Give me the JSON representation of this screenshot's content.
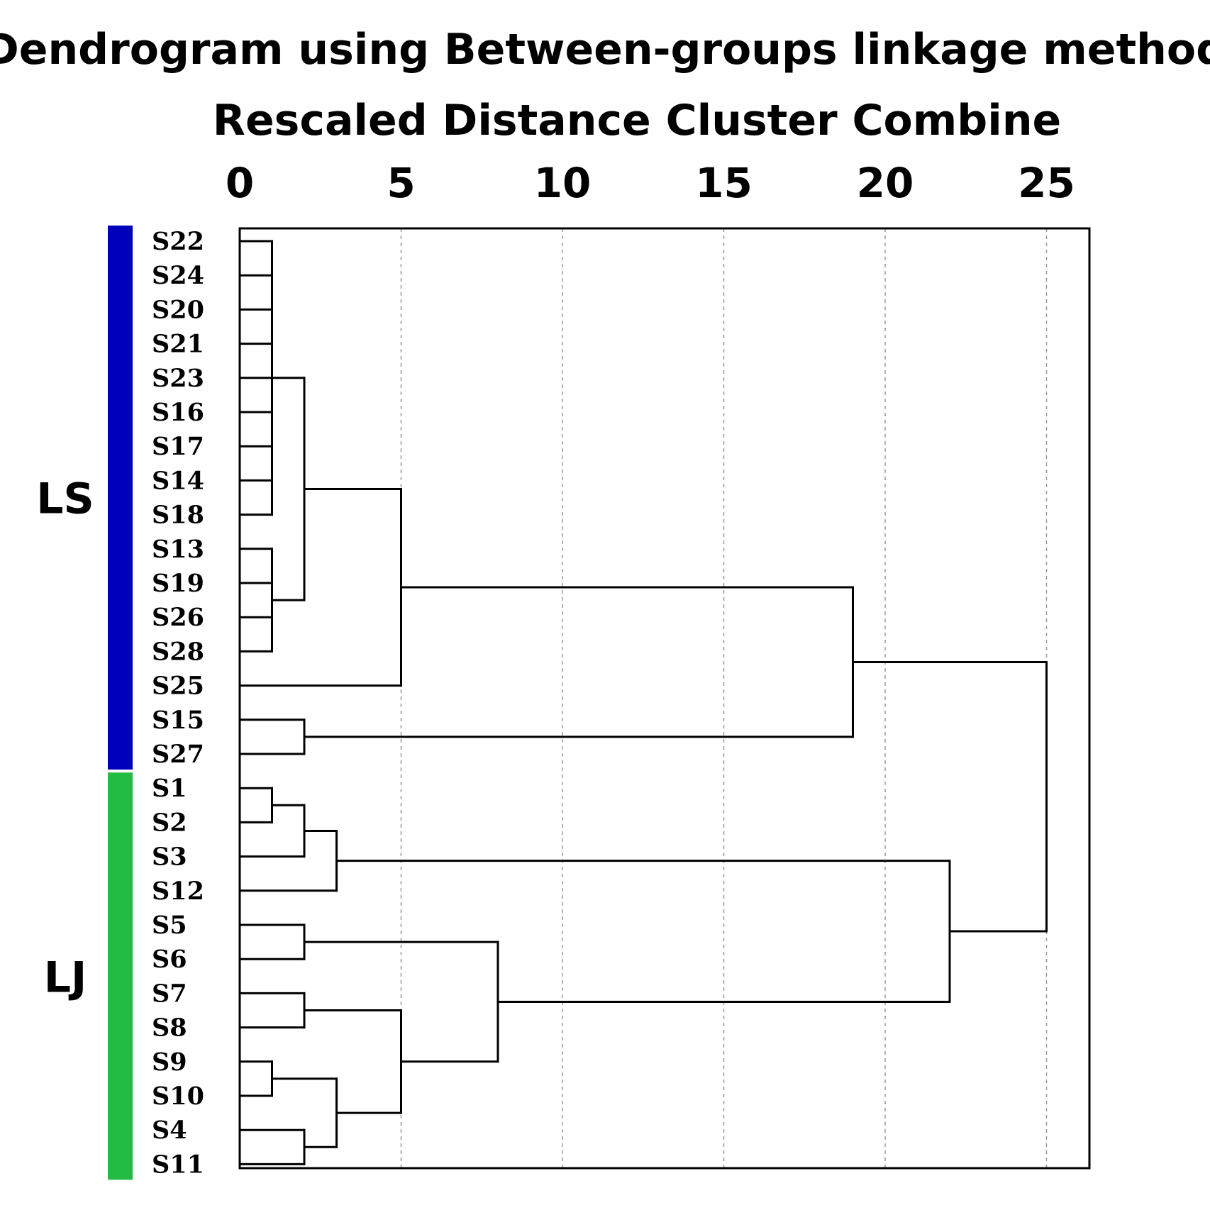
{
  "chart_data": {
    "type": "dendrogram",
    "title": "Dendrogram using Between-groups linkage method",
    "subtitle": "Rescaled Distance Cluster Combine",
    "x_ticks": [
      "0",
      "5",
      "10",
      "15",
      "20",
      "25"
    ],
    "xlim": [
      0,
      26.3
    ],
    "grid": true,
    "leaves": [
      "S22",
      "S24",
      "S20",
      "S21",
      "S23",
      "S16",
      "S17",
      "S14",
      "S18",
      "S13",
      "S19",
      "S26",
      "S28",
      "S25",
      "S15",
      "S27",
      "S1",
      "S2",
      "S3",
      "S12",
      "S5",
      "S6",
      "S7",
      "S8",
      "S9",
      "S10",
      "S4",
      "S11"
    ],
    "groups": [
      {
        "label": "LS",
        "color": "#0000bb",
        "from_leaf": 0,
        "to_leaf": 15
      },
      {
        "label": "LJ",
        "color": "#22bb44",
        "from_leaf": 16,
        "to_leaf": 27
      }
    ],
    "merges": [
      {
        "id": "m1",
        "children": [
          "S22",
          "S24",
          "S20",
          "S21",
          "S23",
          "S16",
          "S17",
          "S14",
          "S18"
        ],
        "height": 1
      },
      {
        "id": "m2",
        "children": [
          "S13",
          "S19",
          "S26",
          "S28"
        ],
        "height": 1
      },
      {
        "id": "m3",
        "children": [
          "m1",
          "m2"
        ],
        "height": 2
      },
      {
        "id": "m4",
        "children": [
          "m3",
          "S25"
        ],
        "height": 5
      },
      {
        "id": "m5",
        "children": [
          "S15",
          "S27"
        ],
        "height": 2
      },
      {
        "id": "m6",
        "children": [
          "m4",
          "m5"
        ],
        "height": 19
      },
      {
        "id": "m7",
        "children": [
          "S1",
          "S2"
        ],
        "height": 1
      },
      {
        "id": "m8",
        "children": [
          "m7",
          "S3"
        ],
        "height": 2
      },
      {
        "id": "m9",
        "children": [
          "m8",
          "S12"
        ],
        "height": 3
      },
      {
        "id": "m10",
        "children": [
          "S5",
          "S6"
        ],
        "height": 2
      },
      {
        "id": "m11",
        "children": [
          "S7",
          "S8"
        ],
        "height": 2
      },
      {
        "id": "m12",
        "children": [
          "S9",
          "S10"
        ],
        "height": 1
      },
      {
        "id": "m13",
        "children": [
          "S4",
          "S11"
        ],
        "height": 2
      },
      {
        "id": "m14",
        "children": [
          "m12",
          "m13"
        ],
        "height": 3
      },
      {
        "id": "m15",
        "children": [
          "m11",
          "m14"
        ],
        "height": 5
      },
      {
        "id": "m16",
        "children": [
          "m10",
          "m15"
        ],
        "height": 8
      },
      {
        "id": "m17",
        "children": [
          "m9",
          "m16"
        ],
        "height": 22
      },
      {
        "id": "m18",
        "children": [
          "m6",
          "m17"
        ],
        "height": 25
      }
    ]
  }
}
